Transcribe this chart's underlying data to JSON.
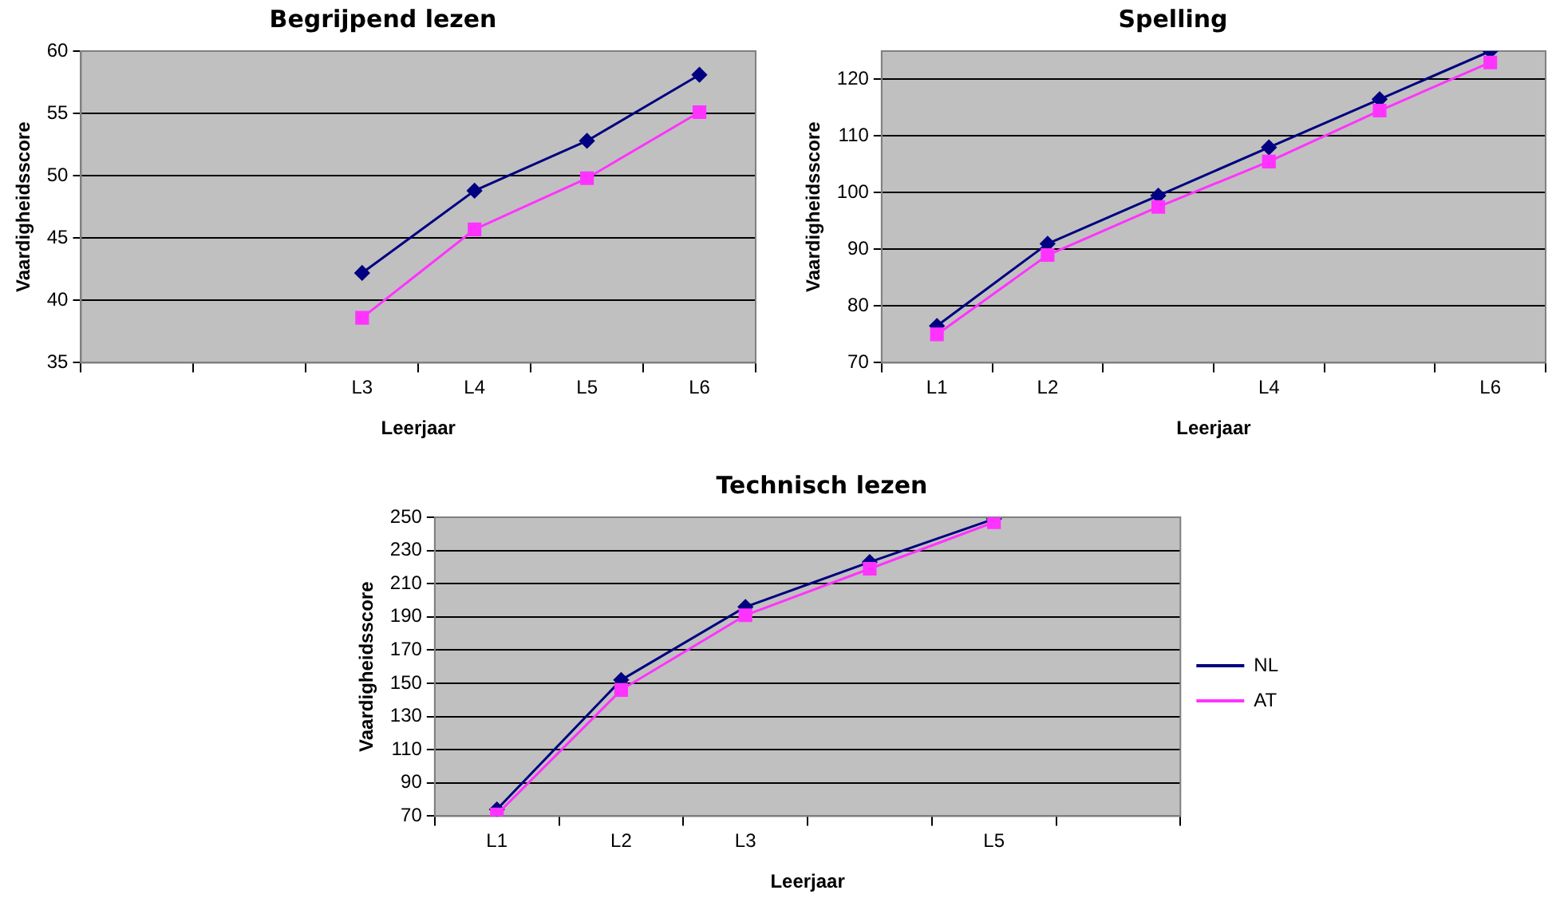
{
  "chart_data": [
    {
      "type": "line",
      "title": "Begrijpend lezen",
      "xlabel": "Leerjaar",
      "ylabel": "Vaardigheidsscore",
      "categories": [
        null,
        null,
        "L3",
        "L4",
        "L5",
        "L6"
      ],
      "series": [
        {
          "color": "#000080",
          "marker": "diamond",
          "values": [
            null,
            null,
            42.2,
            48.8,
            52.8,
            58.1
          ]
        },
        {
          "color": "#ff33ff",
          "marker": "square",
          "values": [
            null,
            null,
            38.6,
            45.7,
            49.8,
            55.1
          ]
        }
      ],
      "ylim": [
        35,
        60
      ],
      "yticks": [
        35,
        40,
        45,
        50,
        55,
        60
      ],
      "grid": "y",
      "legend": false
    },
    {
      "type": "line",
      "title": "Spelling",
      "xlabel": "Leerjaar",
      "ylabel": "Vaardigheidsscore",
      "categories": [
        "L1",
        "L2",
        null,
        "L4",
        null,
        "L6"
      ],
      "series": [
        {
          "color": "#000080",
          "marker": "diamond",
          "values": [
            76.5,
            91,
            99.5,
            108,
            116.5,
            125
          ]
        },
        {
          "color": "#ff33ff",
          "marker": "square",
          "values": [
            75,
            89,
            97.5,
            105.5,
            114.5,
            123
          ]
        }
      ],
      "ylim": [
        70,
        125
      ],
      "yticks": [
        70,
        80,
        90,
        100,
        110,
        120
      ],
      "grid": "y",
      "legend": false
    },
    {
      "type": "line",
      "title": "Technisch lezen",
      "xlabel": "Leerjaar",
      "ylabel": "Vaardigheidsscore",
      "categories": [
        "L1",
        "L2",
        "L3",
        null,
        "L5",
        null
      ],
      "series": [
        {
          "name": "NL",
          "color": "#000080",
          "marker": "diamond",
          "values": [
            74,
            152,
            196,
            223,
            249,
            null
          ]
        },
        {
          "name": "AT",
          "color": "#ff33ff",
          "marker": "square",
          "values": [
            71,
            146,
            191,
            219,
            247,
            null
          ]
        }
      ],
      "ylim": [
        70,
        250
      ],
      "yticks": [
        70,
        90,
        110,
        130,
        150,
        170,
        190,
        210,
        230,
        250
      ],
      "grid": "y",
      "legend": "right"
    }
  ]
}
